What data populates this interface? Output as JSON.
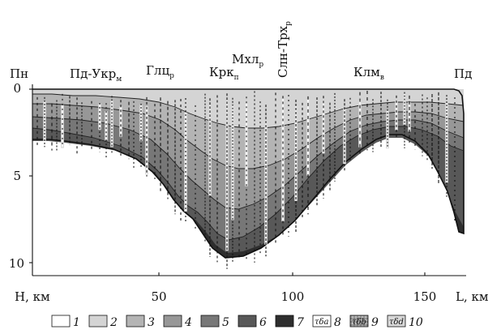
{
  "figure": {
    "axis": {
      "x_label": "L, км",
      "y_label": "H, км",
      "x_ticks": [
        "50",
        "100",
        "150"
      ],
      "y_ticks": [
        "0",
        "5",
        "10"
      ]
    },
    "places": [
      {
        "main": "Пн",
        "sub": ""
      },
      {
        "main": "Пд-Укр",
        "sub": "м"
      },
      {
        "main": "Глц",
        "sub": "р"
      },
      {
        "main": "Крк",
        "sub": "п"
      },
      {
        "main": "Мхл",
        "sub": "р"
      },
      {
        "main": "Слн-Трх",
        "sub": "р"
      },
      {
        "main": "Клм",
        "sub": "в"
      },
      {
        "main": "Пд",
        "sub": ""
      }
    ],
    "legend": [
      {
        "num": "1",
        "fill": "#ffffff",
        "pattern": ""
      },
      {
        "num": "2",
        "fill": "#d4d4d4",
        "pattern": ""
      },
      {
        "num": "3",
        "fill": "#b4b4b4",
        "pattern": ""
      },
      {
        "num": "4",
        "fill": "#979797",
        "pattern": ""
      },
      {
        "num": "5",
        "fill": "#777777",
        "pattern": ""
      },
      {
        "num": "6",
        "fill": "#585858",
        "pattern": ""
      },
      {
        "num": "7",
        "fill": "#2e2e2e",
        "pattern": ""
      },
      {
        "num": "8",
        "fill": "#ffffff",
        "pattern": "t-s-a",
        "pattern_sub": "a"
      },
      {
        "num": "9",
        "fill": "#9a9a9a",
        "pattern": "t-s-b",
        "pattern_sub": "b"
      },
      {
        "num": "10",
        "fill": "#d8d8d8",
        "pattern": "t-s-b",
        "pattern_sub": "d"
      }
    ]
  }
}
